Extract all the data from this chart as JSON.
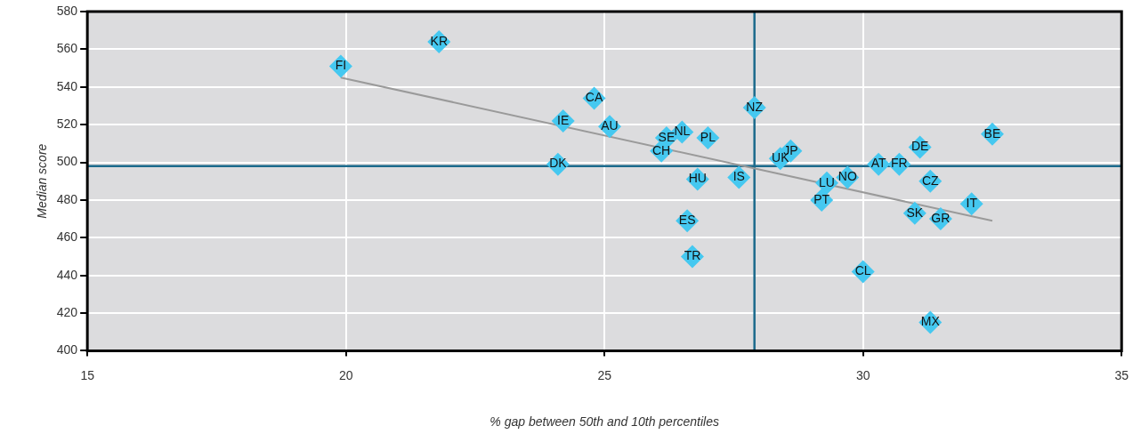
{
  "chart_data": {
    "type": "scatter",
    "xlabel": "% gap between 50th and 10th percentiles",
    "ylabel": "Median score",
    "xlim": [
      15,
      35
    ],
    "xticks": [
      15,
      20,
      25,
      30,
      35
    ],
    "ylim": [
      400,
      580
    ],
    "yticks": [
      400,
      420,
      440,
      460,
      480,
      500,
      520,
      540,
      560,
      580
    ],
    "grid": true,
    "series": [
      {
        "marker": "diamond",
        "color": "#45c8f0",
        "x": [
          19.9,
          21.8,
          24.8,
          24.2,
          25.1,
          24.1,
          26.2,
          26.5,
          26.1,
          27.0,
          26.8,
          27.6,
          26.6,
          26.7,
          27.9,
          28.4,
          28.6,
          29.3,
          29.7,
          29.2,
          30.3,
          30.7,
          31.1,
          31.3,
          31.0,
          31.5,
          32.1,
          32.5,
          30.0,
          31.3
        ],
        "values": [
          551,
          564,
          534,
          522,
          519,
          499,
          513,
          516,
          506,
          513,
          491,
          492,
          469,
          450,
          529,
          502,
          506,
          489,
          492,
          480,
          499,
          499,
          508,
          490,
          473,
          470,
          478,
          515,
          442,
          415
        ]
      },
      {
        "type": "line",
        "marker": "none",
        "color": "#9a9a9a",
        "x": [
          19.9,
          32.5
        ],
        "values": [
          545,
          469
        ]
      }
    ],
    "ref_lines": [
      {
        "axis": "x",
        "value": 27.9,
        "color": "#1b6a8c"
      },
      {
        "axis": "y",
        "value": 498,
        "color": "#1b6a8c"
      }
    ],
    "annotations": [
      {
        "text": "FI",
        "x": 19.9,
        "y": 551
      },
      {
        "text": "KR",
        "x": 21.8,
        "y": 564
      },
      {
        "text": "CA",
        "x": 24.8,
        "y": 534
      },
      {
        "text": "IE",
        "x": 24.2,
        "y": 522
      },
      {
        "text": "AU",
        "x": 25.1,
        "y": 519
      },
      {
        "text": "DK",
        "x": 24.1,
        "y": 499
      },
      {
        "text": "SE",
        "x": 26.2,
        "y": 513
      },
      {
        "text": "NL",
        "x": 26.5,
        "y": 516
      },
      {
        "text": "CH",
        "x": 26.1,
        "y": 506
      },
      {
        "text": "PL",
        "x": 27.0,
        "y": 513
      },
      {
        "text": "HU",
        "x": 26.8,
        "y": 491
      },
      {
        "text": "IS",
        "x": 27.6,
        "y": 492
      },
      {
        "text": "ES",
        "x": 26.6,
        "y": 469
      },
      {
        "text": "TR",
        "x": 26.7,
        "y": 450
      },
      {
        "text": "NZ",
        "x": 27.9,
        "y": 529
      },
      {
        "text": "UK",
        "x": 28.4,
        "y": 502
      },
      {
        "text": "JP",
        "x": 28.6,
        "y": 506
      },
      {
        "text": "LU",
        "x": 29.3,
        "y": 489
      },
      {
        "text": "NO",
        "x": 29.7,
        "y": 492
      },
      {
        "text": "PT",
        "x": 29.2,
        "y": 480
      },
      {
        "text": "AT",
        "x": 30.3,
        "y": 499
      },
      {
        "text": "FR",
        "x": 30.7,
        "y": 499
      },
      {
        "text": "DE",
        "x": 31.1,
        "y": 508
      },
      {
        "text": "CZ",
        "x": 31.3,
        "y": 490
      },
      {
        "text": "SK",
        "x": 31.0,
        "y": 473
      },
      {
        "text": "GR",
        "x": 31.5,
        "y": 470
      },
      {
        "text": "IT",
        "x": 32.1,
        "y": 478
      },
      {
        "text": "BE",
        "x": 32.5,
        "y": 515
      },
      {
        "text": "CL",
        "x": 30.0,
        "y": 442
      },
      {
        "text": "MX",
        "x": 31.3,
        "y": 415
      }
    ]
  }
}
